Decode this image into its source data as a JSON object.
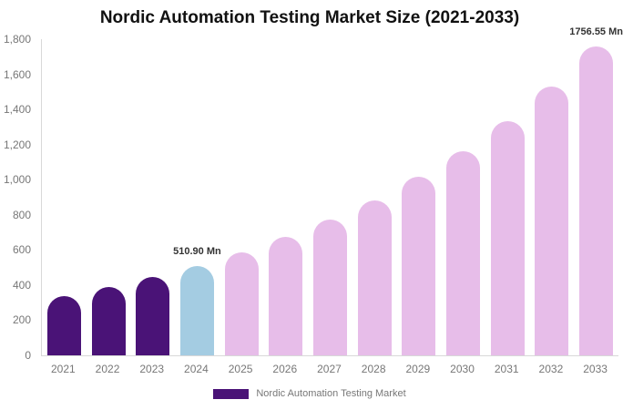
{
  "title": "Nordic Automation Testing Market Size (2021-2033)",
  "colors": {
    "purple": "#4a1377",
    "blue": "#a4cce2",
    "pink": "#e7bde9",
    "axis_line": "#d8d8d8",
    "tick_text": "#777777",
    "title_text": "#111111",
    "data_label_text": "#333333",
    "background": "#ffffff"
  },
  "chart_data": {
    "type": "bar",
    "title": "Nordic Automation Testing Market Size (2021-2033)",
    "xlabel": "",
    "ylabel": "",
    "unit": "Mn",
    "categories": [
      "2021",
      "2022",
      "2023",
      "2024",
      "2025",
      "2026",
      "2027",
      "2028",
      "2029",
      "2030",
      "2031",
      "2032",
      "2033"
    ],
    "values": [
      338.5,
      388.3,
      445.4,
      510.9,
      586.0,
      672.2,
      771.1,
      884.5,
      1014.6,
      1163.8,
      1335.0,
      1531.3,
      1756.55
    ],
    "bar_color_keys": [
      "purple",
      "purple",
      "purple",
      "blue",
      "pink",
      "pink",
      "pink",
      "pink",
      "pink",
      "pink",
      "pink",
      "pink",
      "pink"
    ],
    "ylim": [
      0,
      1800
    ],
    "yticks": [
      [
        0,
        "0"
      ],
      [
        200,
        "200"
      ],
      [
        400,
        "400"
      ],
      [
        600,
        "600"
      ],
      [
        800,
        "800"
      ],
      [
        1000,
        "1,000"
      ],
      [
        1200,
        "1,200"
      ],
      [
        1400,
        "1,400"
      ],
      [
        1600,
        "1,600"
      ],
      [
        1800,
        "1,800"
      ]
    ],
    "grid": false,
    "annotations": [
      {
        "year": "2024",
        "text": "510.90 Mn"
      },
      {
        "year": "2033",
        "text": "1756.55 Mn"
      }
    ],
    "legend": [
      {
        "label": "Nordic Automation Testing Market",
        "color_key": "purple"
      }
    ],
    "legend_position": "bottom-center"
  }
}
